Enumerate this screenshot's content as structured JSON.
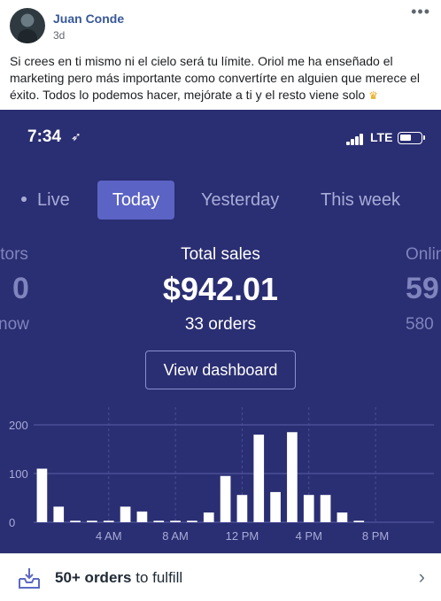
{
  "post": {
    "author": "Juan Conde",
    "time": "3d",
    "text": "Si crees en ti mismo ni el cielo será tu límite. Oriol me ha enseñado el marketing pero más importante como convertírte en alguien que merece el éxito. Todos lo podemos hacer, mejórate a ti y el resto viene solo",
    "emoji_icon": "crown-icon",
    "more_icon": "more-options-icon"
  },
  "phone": {
    "status": {
      "time": "7:34",
      "network": "LTE"
    },
    "tabs": [
      {
        "label": "Live"
      },
      {
        "label": "Today",
        "selected": true
      },
      {
        "label": "Yesterday"
      },
      {
        "label": "This week"
      }
    ],
    "stats": {
      "left": {
        "label": "itors",
        "value": "0",
        "sub": "now"
      },
      "center": {
        "label": "Total sales",
        "value": "$942.01",
        "sub": "33 orders"
      },
      "right": {
        "label": "Onlin",
        "value": "59",
        "sub": "580"
      }
    },
    "view_dashboard": "View dashboard",
    "fulfill": {
      "count": "50+ orders",
      "suffix": "to fulfill"
    },
    "colors": {
      "background": "#2a2e72",
      "accent": "#5b63c4",
      "bar": "#ffffff"
    }
  },
  "chart_data": {
    "type": "bar",
    "x_tick_labels": [
      "4 AM",
      "8 AM",
      "12 PM",
      "4 PM",
      "8 PM"
    ],
    "y_tick_labels": [
      "200",
      "100",
      "0"
    ],
    "ylim": [
      0,
      200
    ],
    "values": [
      110,
      32,
      3,
      3,
      3,
      32,
      22,
      3,
      3,
      3,
      20,
      95,
      56,
      180,
      62,
      185,
      56,
      56,
      20,
      3,
      0,
      0,
      0,
      0
    ],
    "grid": true
  }
}
